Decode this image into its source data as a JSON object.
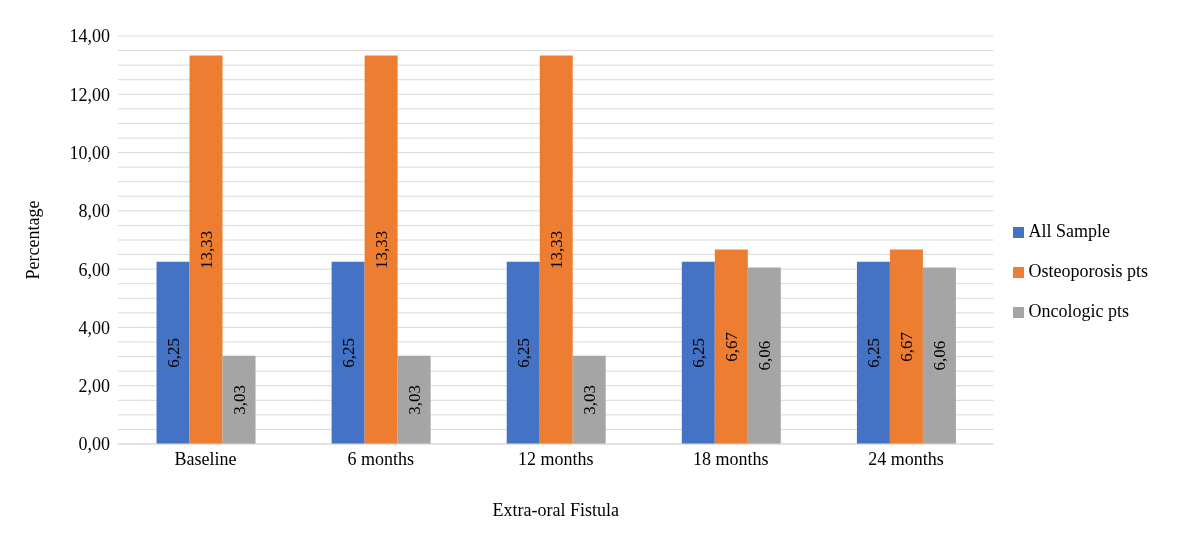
{
  "chart_data": {
    "type": "bar",
    "ylabel": "Percentage",
    "xlabel": "Extra-oral Fistula",
    "categories": [
      "Baseline",
      "6 months",
      "12 months",
      "18 months",
      "24 months"
    ],
    "series": [
      {
        "name": "All Sample",
        "color": "#4472c4",
        "values": [
          6.25,
          6.25,
          6.25,
          6.25,
          6.25
        ],
        "value_labels": [
          "6,25",
          "6,25",
          "6,25",
          "6,25",
          "6,25"
        ]
      },
      {
        "name": "Osteoporosis pts",
        "color": "#ed7d31",
        "values": [
          13.33,
          13.33,
          13.33,
          6.67,
          6.67
        ],
        "value_labels": [
          "13,33",
          "13,33",
          "13,33",
          "6,67",
          "6,67"
        ]
      },
      {
        "name": "Oncologic pts",
        "color": "#a5a5a5",
        "values": [
          3.03,
          3.03,
          3.03,
          6.06,
          6.06
        ],
        "value_labels": [
          "3,03",
          "3,03",
          "3,03",
          "6,06",
          "6,06"
        ]
      }
    ],
    "ylim": [
      0,
      14
    ],
    "yticks": [
      {
        "value": 0,
        "label": "0,00"
      },
      {
        "value": 0.5,
        "label": null
      },
      {
        "value": 1,
        "label": null
      },
      {
        "value": 1.5,
        "label": null
      },
      {
        "value": 2,
        "label": "2,00"
      },
      {
        "value": 2.5,
        "label": null
      },
      {
        "value": 3,
        "label": null
      },
      {
        "value": 3.5,
        "label": null
      },
      {
        "value": 4,
        "label": "4,00"
      },
      {
        "value": 4.5,
        "label": null
      },
      {
        "value": 5,
        "label": null
      },
      {
        "value": 5.5,
        "label": null
      },
      {
        "value": 6,
        "label": "6,00"
      },
      {
        "value": 6.5,
        "label": null
      },
      {
        "value": 7,
        "label": null
      },
      {
        "value": 7.5,
        "label": null
      },
      {
        "value": 8,
        "label": "8,00"
      },
      {
        "value": 8.5,
        "label": null
      },
      {
        "value": 9,
        "label": null
      },
      {
        "value": 9.5,
        "label": null
      },
      {
        "value": 10,
        "label": "10,00"
      },
      {
        "value": 10.5,
        "label": null
      },
      {
        "value": 11,
        "label": null
      },
      {
        "value": 11.5,
        "label": null
      },
      {
        "value": 12,
        "label": "12,00"
      },
      {
        "value": 12.5,
        "label": null
      },
      {
        "value": 13,
        "label": null
      },
      {
        "value": 13.5,
        "label": null
      },
      {
        "value": 14,
        "label": "14,00"
      }
    ],
    "grid": "y",
    "legend": "right"
  }
}
